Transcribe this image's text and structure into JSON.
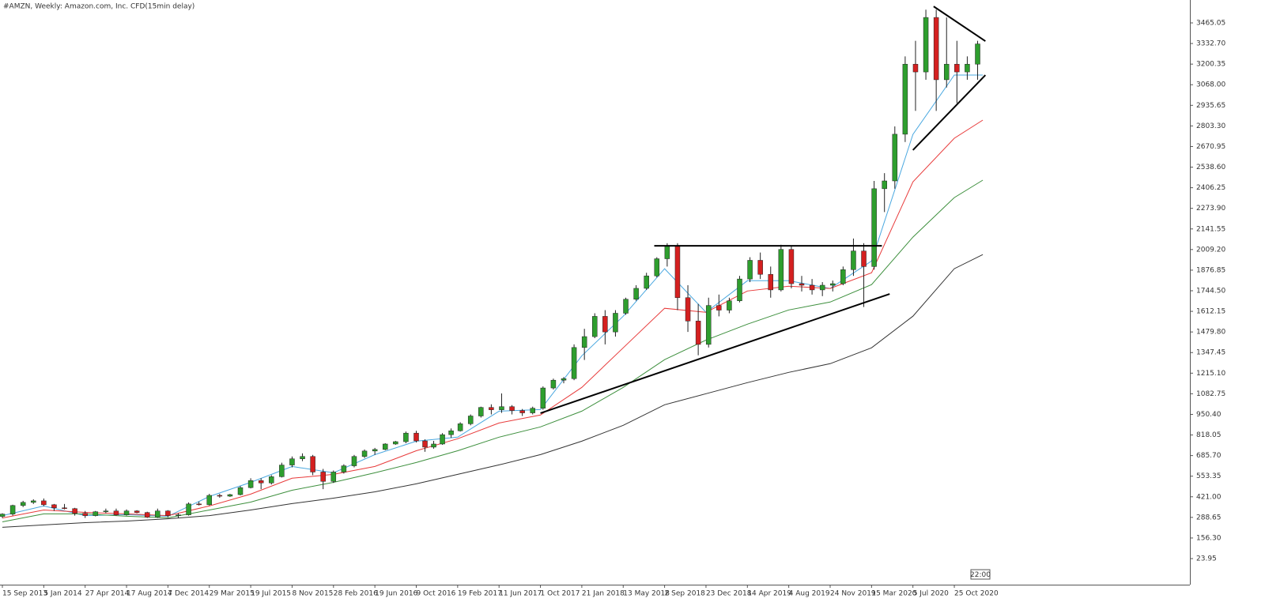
{
  "chart_data": {
    "type": "candlestick",
    "title": "#AMZN, Weekly:  Amazon.com, Inc. CFD(15min delay)",
    "time_label": "22:00",
    "up_color": "#2e9e2e",
    "down_color": "#d42020",
    "wick_color": "#222222",
    "xlim": [
      "2013-09-08",
      "2022-07-24"
    ],
    "xticks": [
      {
        "value": "2013-09-15",
        "label": "15 Sep 2013"
      },
      {
        "value": "2014-01-05",
        "label": "5 Jan 2014"
      },
      {
        "value": "2014-04-27",
        "label": "27 Apr 2014"
      },
      {
        "value": "2014-08-17",
        "label": "17 Aug 2014"
      },
      {
        "value": "2014-12-07",
        "label": "7 Dec 2014"
      },
      {
        "value": "2015-03-29",
        "label": "29 Mar 2015"
      },
      {
        "value": "2015-07-19",
        "label": "19 Jul 2015"
      },
      {
        "value": "2015-11-08",
        "label": "8 Nov 2015"
      },
      {
        "value": "2016-02-28",
        "label": "28 Feb 2016"
      },
      {
        "value": "2016-06-19",
        "label": "19 Jun 2016"
      },
      {
        "value": "2016-10-09",
        "label": "9 Oct 2016"
      },
      {
        "value": "2017-02-19",
        "label": "19 Feb 2017"
      },
      {
        "value": "2017-06-11",
        "label": "11 Jun 2017"
      },
      {
        "value": "2017-10-01",
        "label": "1 Oct 2017"
      },
      {
        "value": "2018-01-21",
        "label": "21 Jan 2018"
      },
      {
        "value": "2018-05-13",
        "label": "13 May 2018"
      },
      {
        "value": "2018-09-02",
        "label": "2 Sep 2018"
      },
      {
        "value": "2018-12-23",
        "label": "23 Dec 2018"
      },
      {
        "value": "2019-04-14",
        "label": "14 Apr 2019"
      },
      {
        "value": "2019-08-04",
        "label": "4 Aug 2019"
      },
      {
        "value": "2019-11-24",
        "label": "24 Nov 2019"
      },
      {
        "value": "2020-03-15",
        "label": "15 Mar 2020"
      },
      {
        "value": "2020-07-05",
        "label": "5 Jul 2020"
      },
      {
        "value": "2020-10-25",
        "label": "25 Oct 2020"
      }
    ],
    "ylim": [
      -143.5,
      3612.2
    ],
    "yticks": [
      {
        "value": 3465.05,
        "label": "3465.05"
      },
      {
        "value": 3332.7,
        "label": "3332.70"
      },
      3200.35,
      {
        "value": 3068,
        "label": "3068.00"
      },
      2935.65,
      {
        "value": 2803.3,
        "label": "2803.30"
      },
      2670.95,
      {
        "value": 2538.6,
        "label": "2538.60"
      },
      2406.25,
      {
        "value": 2273.9,
        "label": "2273.90"
      },
      2141.55,
      {
        "value": 2009.2,
        "label": "2009.20"
      },
      1876.85,
      {
        "value": 1744.5,
        "label": "1744.50"
      },
      1612.15,
      {
        "value": 1479.8,
        "label": "1479.80"
      },
      1347.45,
      {
        "value": 1215.1,
        "label": "1215.10"
      },
      1082.75,
      {
        "value": 950.4,
        "label": "950.40"
      },
      818.05,
      {
        "value": 685.7,
        "label": "685.70"
      },
      553.35,
      {
        "value": 421,
        "label": "421.00"
      },
      288.65,
      {
        "value": 156.3,
        "label": "156.30"
      },
      23.95
    ],
    "candles": [
      [
        "2013-09-15",
        295,
        315,
        285,
        310
      ],
      [
        "2013-10-13",
        310,
        370,
        300,
        365
      ],
      [
        "2013-11-10",
        365,
        395,
        355,
        385
      ],
      [
        "2013-12-08",
        385,
        405,
        375,
        395
      ],
      [
        "2014-01-05",
        395,
        410,
        360,
        370
      ],
      [
        "2014-02-02",
        370,
        375,
        330,
        350
      ],
      [
        "2014-03-02",
        350,
        375,
        340,
        345
      ],
      [
        "2014-03-30",
        345,
        350,
        300,
        315
      ],
      [
        "2014-04-27",
        315,
        330,
        285,
        300
      ],
      [
        "2014-05-25",
        300,
        330,
        295,
        325
      ],
      [
        "2014-06-22",
        325,
        345,
        315,
        330
      ],
      [
        "2014-07-20",
        330,
        345,
        300,
        305
      ],
      [
        "2014-08-17",
        305,
        340,
        300,
        330
      ],
      [
        "2014-09-14",
        330,
        335,
        315,
        320
      ],
      [
        "2014-10-12",
        320,
        325,
        285,
        290
      ],
      [
        "2014-11-09",
        290,
        345,
        285,
        330
      ],
      [
        "2014-12-07",
        330,
        335,
        290,
        300
      ],
      [
        "2015-01-04",
        300,
        315,
        285,
        305
      ],
      [
        "2015-02-01",
        305,
        385,
        300,
        375
      ],
      [
        "2015-03-01",
        375,
        390,
        365,
        370
      ],
      [
        "2015-03-29",
        370,
        440,
        365,
        430
      ],
      [
        "2015-04-26",
        430,
        440,
        415,
        425
      ],
      [
        "2015-05-24",
        425,
        440,
        420,
        435
      ],
      [
        "2015-06-21",
        435,
        490,
        430,
        480
      ],
      [
        "2015-07-19",
        480,
        540,
        475,
        525
      ],
      [
        "2015-08-16",
        525,
        540,
        470,
        510
      ],
      [
        "2015-09-13",
        510,
        560,
        500,
        550
      ],
      [
        "2015-10-11",
        550,
        640,
        545,
        625
      ],
      [
        "2015-11-08",
        625,
        680,
        610,
        665
      ],
      [
        "2015-12-06",
        665,
        700,
        650,
        680
      ],
      [
        "2016-01-03",
        680,
        690,
        560,
        580
      ],
      [
        "2016-01-31",
        580,
        600,
        470,
        520
      ],
      [
        "2016-02-28",
        520,
        590,
        510,
        580
      ],
      [
        "2016-03-27",
        580,
        630,
        570,
        620
      ],
      [
        "2016-04-24",
        620,
        690,
        610,
        680
      ],
      [
        "2016-05-22",
        680,
        725,
        670,
        715
      ],
      [
        "2016-06-19",
        715,
        735,
        690,
        725
      ],
      [
        "2016-07-17",
        725,
        765,
        720,
        760
      ],
      [
        "2016-08-14",
        760,
        780,
        755,
        775
      ],
      [
        "2016-09-11",
        775,
        840,
        765,
        830
      ],
      [
        "2016-10-09",
        830,
        845,
        770,
        780
      ],
      [
        "2016-11-06",
        780,
        790,
        710,
        740
      ],
      [
        "2016-12-04",
        740,
        780,
        730,
        760
      ],
      [
        "2017-01-01",
        760,
        830,
        755,
        820
      ],
      [
        "2017-01-29",
        820,
        860,
        800,
        845
      ],
      [
        "2017-02-26",
        845,
        900,
        840,
        890
      ],
      [
        "2017-03-26",
        890,
        950,
        880,
        940
      ],
      [
        "2017-04-23",
        940,
        1000,
        930,
        995
      ],
      [
        "2017-05-21",
        995,
        1015,
        950,
        980
      ],
      [
        "2017-06-18",
        980,
        1085,
        960,
        1000
      ],
      [
        "2017-07-16",
        1000,
        1010,
        950,
        975
      ],
      [
        "2017-08-13",
        975,
        985,
        940,
        960
      ],
      [
        "2017-09-10",
        960,
        1000,
        950,
        990
      ],
      [
        "2017-10-08",
        990,
        1130,
        980,
        1120
      ],
      [
        "2017-11-05",
        1120,
        1180,
        1110,
        1170
      ],
      [
        "2017-12-03",
        1170,
        1190,
        1150,
        1180
      ],
      [
        "2017-12-31",
        1180,
        1400,
        1170,
        1380
      ],
      [
        "2018-01-28",
        1380,
        1500,
        1300,
        1450
      ],
      [
        "2018-02-25",
        1450,
        1600,
        1440,
        1580
      ],
      [
        "2018-03-25",
        1580,
        1620,
        1400,
        1480
      ],
      [
        "2018-04-22",
        1480,
        1620,
        1450,
        1600
      ],
      [
        "2018-05-20",
        1600,
        1700,
        1590,
        1690
      ],
      [
        "2018-06-17",
        1690,
        1780,
        1680,
        1760
      ],
      [
        "2018-07-15",
        1760,
        1860,
        1750,
        1840
      ],
      [
        "2018-08-12",
        1840,
        1960,
        1830,
        1950
      ],
      [
        "2018-09-09",
        1950,
        2050,
        1900,
        2030
      ],
      [
        "2018-10-07",
        2030,
        2050,
        1620,
        1700
      ],
      [
        "2018-11-04",
        1700,
        1780,
        1480,
        1550
      ],
      [
        "2018-12-02",
        1550,
        1660,
        1330,
        1400
      ],
      [
        "2018-12-30",
        1400,
        1700,
        1380,
        1650
      ],
      [
        "2019-01-27",
        1650,
        1720,
        1580,
        1620
      ],
      [
        "2019-02-24",
        1620,
        1700,
        1600,
        1680
      ],
      [
        "2019-03-24",
        1680,
        1840,
        1670,
        1820
      ],
      [
        "2019-04-21",
        1820,
        1960,
        1800,
        1940
      ],
      [
        "2019-05-19",
        1940,
        1990,
        1820,
        1850
      ],
      [
        "2019-06-16",
        1850,
        1900,
        1700,
        1750
      ],
      [
        "2019-07-14",
        1750,
        2040,
        1740,
        2010
      ],
      [
        "2019-08-11",
        2010,
        2030,
        1760,
        1790
      ],
      [
        "2019-09-08",
        1790,
        1840,
        1740,
        1780
      ],
      [
        "2019-10-06",
        1780,
        1820,
        1720,
        1750
      ],
      [
        "2019-11-03",
        1750,
        1800,
        1710,
        1780
      ],
      [
        "2019-12-01",
        1780,
        1810,
        1740,
        1790
      ],
      [
        "2019-12-29",
        1790,
        1900,
        1780,
        1880
      ],
      [
        "2020-01-26",
        1880,
        2080,
        1840,
        2000
      ],
      [
        "2020-02-23",
        2000,
        2050,
        1640,
        1900
      ],
      [
        "2020-03-22",
        1900,
        2450,
        1880,
        2400
      ],
      [
        "2020-04-19",
        2400,
        2500,
        2250,
        2450
      ],
      [
        "2020-05-17",
        2450,
        2800,
        2400,
        2750
      ],
      [
        "2020-06-14",
        2750,
        3250,
        2700,
        3200
      ],
      [
        "2020-07-12",
        3200,
        3350,
        2900,
        3150
      ],
      [
        "2020-08-09",
        3150,
        3550,
        3100,
        3500
      ],
      [
        "2020-09-06",
        3500,
        3550,
        2900,
        3100
      ],
      [
        "2020-10-04",
        3100,
        3500,
        3050,
        3200
      ],
      [
        "2020-11-01",
        3200,
        3350,
        2950,
        3150
      ],
      [
        "2020-11-29",
        3150,
        3250,
        3100,
        3200
      ],
      [
        "2020-12-27",
        3200,
        3350,
        3100,
        3330
      ]
    ],
    "moving_averages": {
      "x": [
        "2013-09-15",
        "2014-01-05",
        "2014-04-27",
        "2014-08-17",
        "2014-12-07",
        "2015-03-29",
        "2015-07-19",
        "2015-11-08",
        "2016-02-28",
        "2016-06-19",
        "2016-10-09",
        "2017-02-19",
        "2017-06-11",
        "2017-10-01",
        "2018-01-21",
        "2018-05-13",
        "2018-09-02",
        "2018-12-23",
        "2019-04-14",
        "2019-08-04",
        "2019-11-24",
        "2020-03-15",
        "2020-07-05",
        "2020-10-25",
        "2021-01-10"
      ],
      "series": [
        {
          "color": "#4aa8e0",
          "values": [
            300,
            362,
            300,
            306,
            296,
            423,
            514,
            616,
            575,
            692,
            778,
            804,
            971,
            981,
            1327,
            1581,
            1886,
            1606,
            1809,
            1809,
            1759,
            1936,
            2749,
            3130,
            3130
          ]
        },
        {
          "color": "#e83a3a",
          "values": [
            285,
            336,
            321,
            311,
            300,
            362,
            438,
            540,
            565,
            616,
            717,
            794,
            895,
            946,
            1124,
            1378,
            1632,
            1606,
            1743,
            1774,
            1759,
            1860,
            2444,
            2724,
            2841
          ]
        },
        {
          "color": "#3d8f3d",
          "values": [
            260,
            311,
            311,
            296,
            286,
            336,
            387,
            463,
            514,
            575,
            641,
            717,
            804,
            870,
            971,
            1124,
            1302,
            1428,
            1530,
            1621,
            1672,
            1784,
            2089,
            2343,
            2455
          ]
        },
        {
          "color": "#333333",
          "values": [
            225,
            240,
            255,
            265,
            280,
            300,
            336,
            377,
            412,
            453,
            504,
            565,
            626,
            692,
            778,
            880,
            1012,
            1083,
            1154,
            1220,
            1276,
            1378,
            1581,
            1886,
            1977
          ]
        }
      ]
    },
    "trendlines": [
      {
        "x": [
          "2018-08-05",
          "2020-04-12"
        ],
        "y": [
          2033,
          2033
        ]
      },
      {
        "x": [
          "2017-10-01",
          "2020-05-03"
        ],
        "y": [
          958,
          1724
        ]
      },
      {
        "x": [
          "2020-08-30",
          "2021-01-17"
        ],
        "y": [
          3571,
          3348
        ]
      },
      {
        "x": [
          "2020-07-05",
          "2021-01-17"
        ],
        "y": [
          2648,
          3130
        ]
      }
    ],
    "trendline_color": "#000000"
  }
}
